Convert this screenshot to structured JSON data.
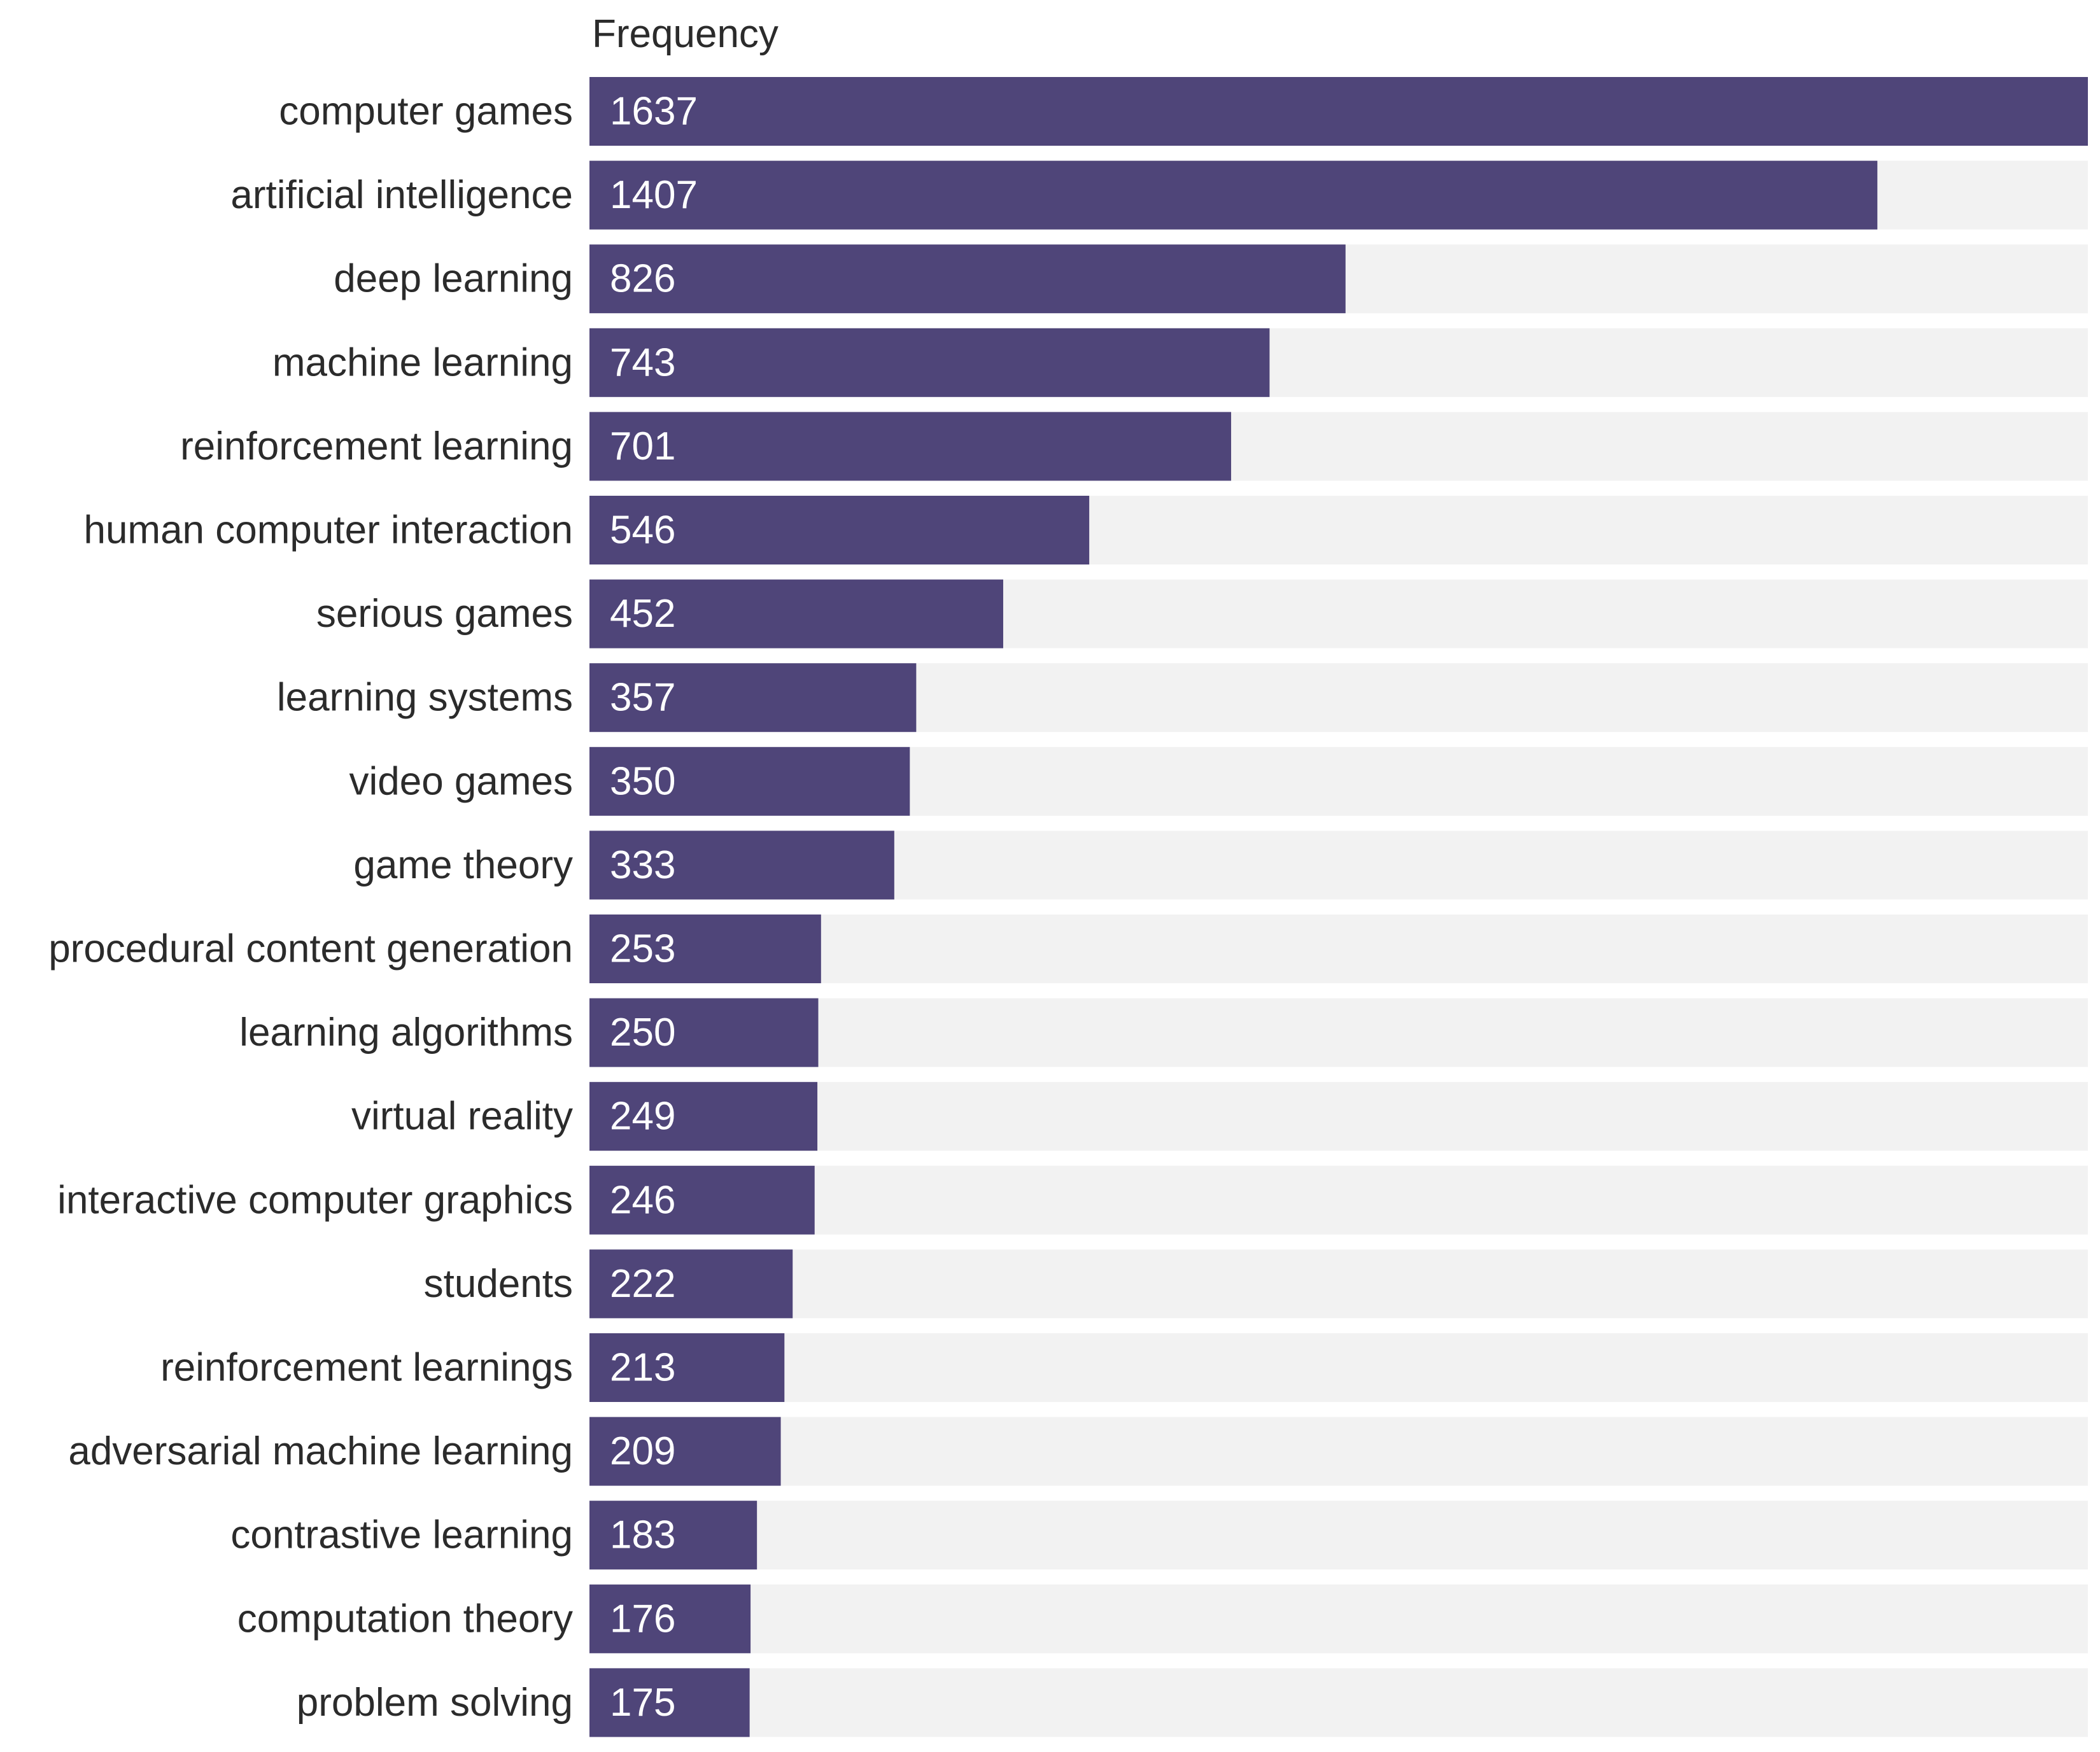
{
  "chart_data": {
    "type": "bar",
    "orientation": "horizontal",
    "title": "",
    "xlabel": "Frequency",
    "ylabel": "",
    "grid": false,
    "legend": "none",
    "colors": {
      "bar": "#4f4579",
      "track": "#f2f2f2",
      "label_text": "#2b2b2b",
      "value_text": "#ffffff"
    },
    "xlim": [
      0,
      1637
    ],
    "categories": [
      "computer games",
      "artificial intelligence",
      "deep learning",
      "machine learning",
      "reinforcement learning",
      "human computer interaction",
      "serious games",
      "learning systems",
      "video games",
      "game theory",
      "procedural content generation",
      "learning algorithms",
      "virtual reality",
      "interactive computer graphics",
      "students",
      "reinforcement learnings",
      "adversarial machine learning",
      "contrastive learning",
      "computation theory",
      "problem solving"
    ],
    "values": [
      1637,
      1407,
      826,
      743,
      701,
      546,
      452,
      357,
      350,
      333,
      253,
      250,
      249,
      246,
      222,
      213,
      209,
      183,
      176,
      175
    ]
  }
}
